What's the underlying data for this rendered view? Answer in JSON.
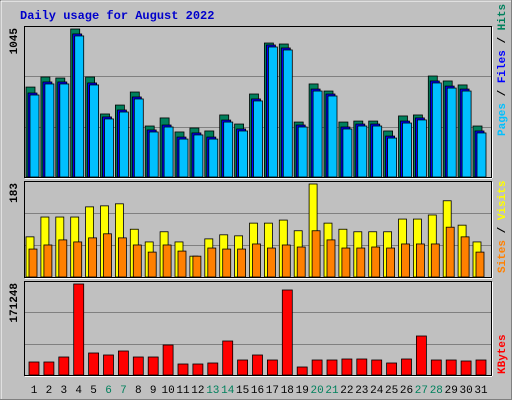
{
  "title": "Daily usage for August 2022",
  "legend_separator": " / ",
  "chart_data": [
    {
      "type": "bar",
      "ylim": [
        0,
        1045
      ],
      "yticks": [
        1045
      ],
      "series": [
        {
          "name": "Hits",
          "color": "#00805c",
          "values": [
            635,
            706,
            699,
            1045,
            706,
            445,
            508,
            600,
            360,
            417,
            318,
            346,
            325,
            438,
            374,
            586,
            946,
            939,
            388,
            657,
            607,
            388,
            395,
            395,
            325,
            431,
            438,
            713,
            678,
            650,
            360
          ]
        },
        {
          "name": "Files",
          "color": "#0000ff",
          "values": [
            593,
            671,
            671,
            1010,
            664,
            424,
            473,
            565,
            332,
            367,
            282,
            311,
            282,
            402,
            339,
            551,
            932,
            911,
            367,
            621,
            586,
            353,
            374,
            374,
            289,
            395,
            417,
            678,
            642,
            621,
            325
          ]
        },
        {
          "name": "Pages",
          "color": "#00c0ff",
          "values": [
            579,
            657,
            657,
            996,
            650,
            410,
            459,
            551,
            318,
            353,
            268,
            297,
            268,
            388,
            325,
            537,
            918,
            897,
            353,
            607,
            572,
            339,
            360,
            360,
            275,
            381,
            403,
            664,
            628,
            607,
            311
          ]
        }
      ]
    },
    {
      "type": "bar",
      "ylim": [
        0,
        183
      ],
      "yticks": [
        183
      ],
      "series": [
        {
          "name": "Visits",
          "color": "#ffff00",
          "values": [
            79,
            118,
            118,
            118,
            138,
            140,
            144,
            94,
            69,
            89,
            69,
            41,
            75,
            83,
            81,
            106,
            106,
            112,
            91,
            183,
            106,
            94,
            89,
            89,
            89,
            114,
            114,
            122,
            150,
            102,
            69
          ]
        },
        {
          "name": "Sites",
          "color": "#ff8000",
          "values": [
            55,
            63,
            73,
            69,
            77,
            85,
            77,
            63,
            49,
            63,
            51,
            41,
            57,
            55,
            55,
            65,
            57,
            63,
            59,
            91,
            73,
            57,
            57,
            59,
            57,
            65,
            65,
            65,
            98,
            79,
            49
          ]
        }
      ]
    },
    {
      "type": "bar",
      "ylim": [
        0,
        171248
      ],
      "yticks": [
        171248
      ],
      "categories": [
        "1",
        "2",
        "3",
        "4",
        "5",
        "6",
        "7",
        "8",
        "9",
        "10",
        "11",
        "12",
        "13",
        "14",
        "15",
        "16",
        "17",
        "18",
        "19",
        "20",
        "21",
        "22",
        "23",
        "24",
        "25",
        "26",
        "27",
        "28",
        "29",
        "30",
        "31"
      ],
      "category_colors": [
        "#000000",
        "#000000",
        "#000000",
        "#000000",
        "#000000",
        "#00805c",
        "#00805c",
        "#000000",
        "#000000",
        "#000000",
        "#000000",
        "#000000",
        "#00805c",
        "#00805c",
        "#000000",
        "#000000",
        "#000000",
        "#000000",
        "#000000",
        "#00805c",
        "#00805c",
        "#000000",
        "#000000",
        "#000000",
        "#000000",
        "#000000",
        "#00805c",
        "#00805c",
        "#000000",
        "#000000",
        "#000000"
      ],
      "series": [
        {
          "name": "KBytes",
          "color": "#ff0000",
          "values": [
            24466,
            24466,
            33876,
            171248,
            41404,
            37640,
            45168,
            33876,
            33876,
            56460,
            20702,
            20702,
            22584,
            63988,
            28230,
            37640,
            28230,
            159970,
            15056,
            28230,
            28230,
            30112,
            30112,
            28230,
            22584,
            30112,
            73398,
            28230,
            28230,
            26348,
            28230
          ]
        }
      ]
    }
  ]
}
